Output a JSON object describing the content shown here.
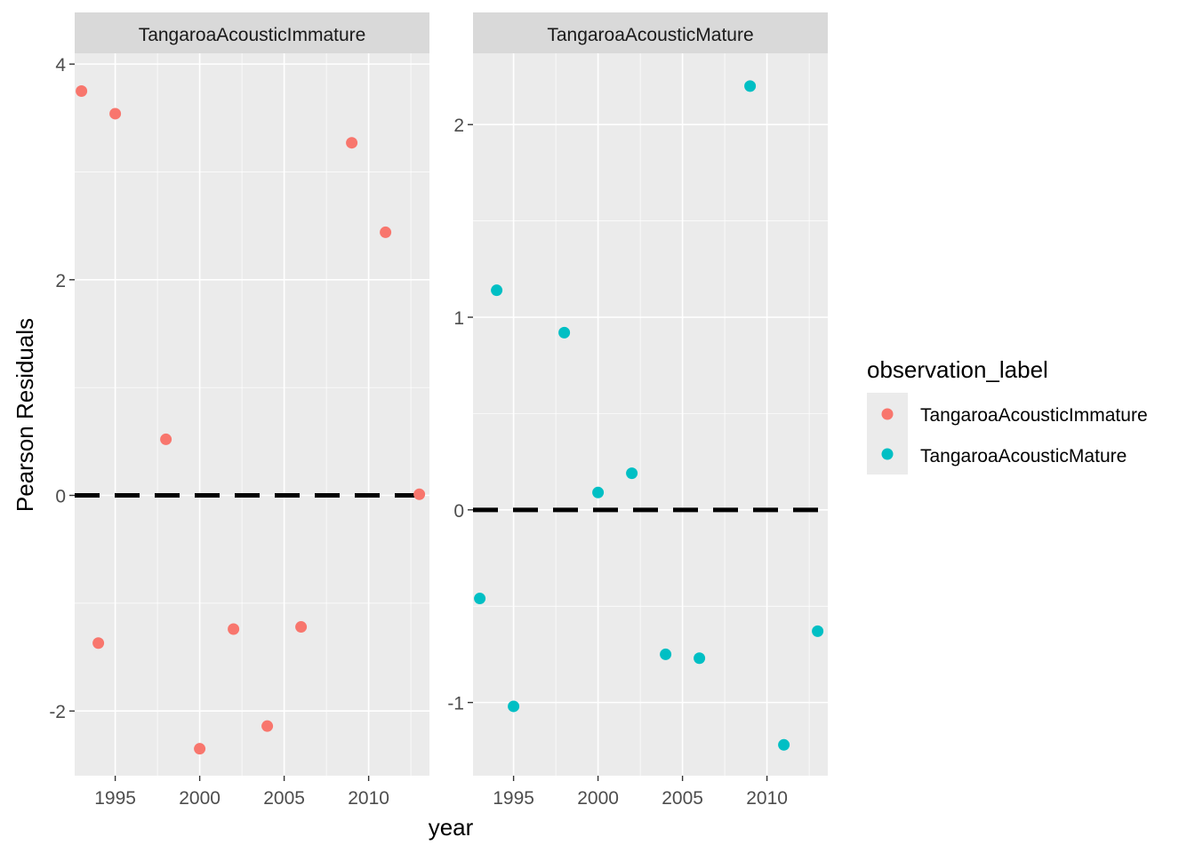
{
  "chart_data": {
    "type": "scatter",
    "xlabel": "year",
    "ylabel": "Pearson Residuals",
    "reference_line": {
      "y": 0,
      "style": "dashed",
      "color": "#000000"
    },
    "grid": true,
    "legend": {
      "title": "observation_label",
      "placement": "right",
      "entries": [
        {
          "label": "TangaroaAcousticImmature",
          "color": "#F8766D"
        },
        {
          "label": "TangaroaAcousticMature",
          "color": "#00BFC4"
        }
      ]
    },
    "panels": [
      {
        "strip": "TangaroaAcousticImmature",
        "color": "#F8766D",
        "xlim": [
          1992.6,
          2013.6
        ],
        "ylim": [
          -2.6,
          4.1
        ],
        "x_ticks": [
          1995,
          2000,
          2005,
          2010
        ],
        "x_tick_labels": [
          "1995",
          "2000",
          "2005",
          "2010"
        ],
        "y_ticks": [
          -2,
          0,
          2,
          4
        ],
        "y_tick_labels": [
          "-2",
          "0",
          "2",
          "4"
        ],
        "points": [
          {
            "x": 1993,
            "y": 3.75
          },
          {
            "x": 1994,
            "y": -1.37
          },
          {
            "x": 1995,
            "y": 3.54
          },
          {
            "x": 1998,
            "y": 0.52
          },
          {
            "x": 2000,
            "y": -2.35
          },
          {
            "x": 2002,
            "y": -1.24
          },
          {
            "x": 2004,
            "y": -2.14
          },
          {
            "x": 2006,
            "y": -1.22
          },
          {
            "x": 2009,
            "y": 3.27
          },
          {
            "x": 2011,
            "y": 2.44
          },
          {
            "x": 2013,
            "y": 0.01
          }
        ]
      },
      {
        "strip": "TangaroaAcousticMature",
        "color": "#00BFC4",
        "xlim": [
          1992.6,
          2013.6
        ],
        "ylim": [
          -1.38,
          2.37
        ],
        "x_ticks": [
          1995,
          2000,
          2005,
          2010
        ],
        "x_tick_labels": [
          "1995",
          "2000",
          "2005",
          "2010"
        ],
        "y_ticks": [
          -1,
          0,
          1,
          2
        ],
        "y_tick_labels": [
          "-1",
          "0",
          "1",
          "2"
        ],
        "points": [
          {
            "x": 1993,
            "y": -0.46
          },
          {
            "x": 1994,
            "y": 1.14
          },
          {
            "x": 1995,
            "y": -1.02
          },
          {
            "x": 1998,
            "y": 0.92
          },
          {
            "x": 2000,
            "y": 0.09
          },
          {
            "x": 2002,
            "y": 0.19
          },
          {
            "x": 2004,
            "y": -0.75
          },
          {
            "x": 2006,
            "y": -0.77
          },
          {
            "x": 2009,
            "y": 2.2
          },
          {
            "x": 2011,
            "y": -1.22
          },
          {
            "x": 2013,
            "y": -0.63
          }
        ]
      }
    ]
  }
}
